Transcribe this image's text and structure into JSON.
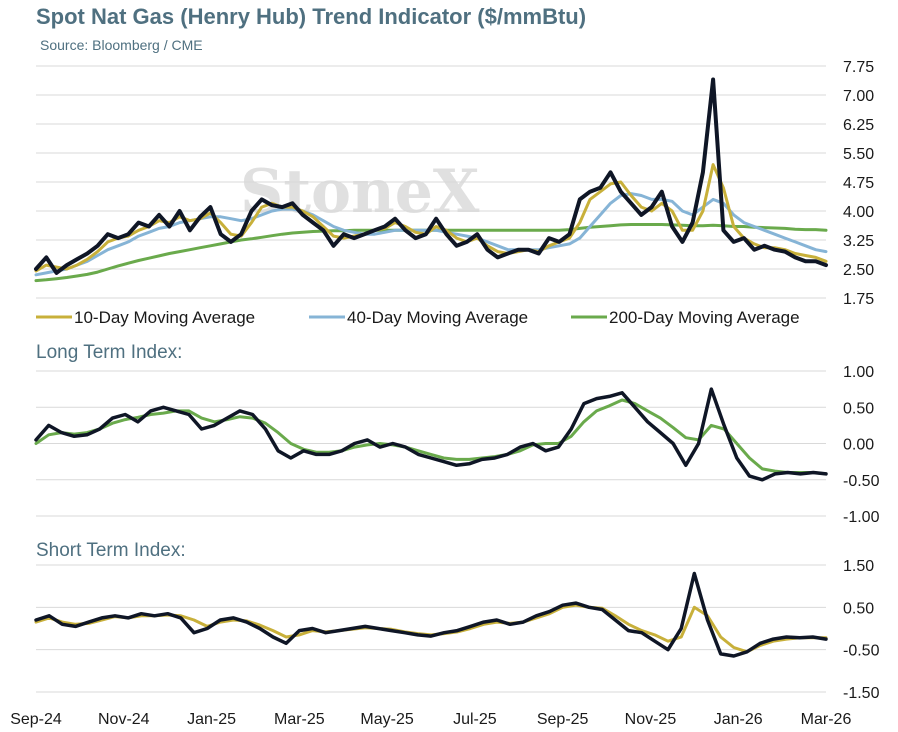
{
  "title": "Spot Nat Gas (Henry Hub) Trend Indicator ($/mmBtu)",
  "source": "Source: Bloomberg / CME",
  "watermark": "StoneX",
  "colors": {
    "price": "#0f1626",
    "ma10": "#c8b03a",
    "ma40": "#86b4d6",
    "ma200": "#6aaa4c",
    "label": "#4f7080"
  },
  "chart_data": [
    {
      "type": "line",
      "title": "Spot Nat Gas (Henry Hub) Trend Indicator ($/mmBtu)",
      "xlabel": "",
      "ylabel": "",
      "x_ticks": [
        "Sep-24",
        "Nov-24",
        "Jan-25",
        "Mar-25",
        "May-25",
        "Jul-25",
        "Sep-25",
        "Nov-25",
        "Jan-26",
        "Mar-26"
      ],
      "ylim": [
        1.75,
        7.75
      ],
      "y_ticks": [
        "7.75",
        "7.00",
        "6.25",
        "5.50",
        "4.75",
        "4.00",
        "3.25",
        "2.50",
        "1.75"
      ],
      "y_tick_values": [
        7.75,
        7.0,
        6.25,
        5.5,
        4.75,
        4.0,
        3.25,
        2.5,
        1.75
      ],
      "grid": "horizontal",
      "legend_position": "bottom",
      "legend": [
        "10-Day Moving Average",
        "40-Day Moving Average",
        "200-Day Moving Average"
      ],
      "series": [
        {
          "key": "price",
          "values": [
            2.5,
            2.8,
            2.4,
            2.6,
            2.75,
            2.9,
            3.1,
            3.4,
            3.3,
            3.4,
            3.7,
            3.6,
            3.9,
            3.6,
            4.0,
            3.5,
            3.85,
            4.1,
            3.4,
            3.2,
            3.4,
            4.0,
            4.3,
            4.15,
            4.1,
            4.2,
            3.9,
            3.7,
            3.5,
            3.1,
            3.4,
            3.3,
            3.4,
            3.5,
            3.6,
            3.8,
            3.5,
            3.3,
            3.4,
            3.8,
            3.4,
            3.1,
            3.2,
            3.4,
            3.0,
            2.8,
            2.9,
            3.0,
            3.0,
            2.9,
            3.3,
            3.2,
            3.4,
            4.3,
            4.5,
            4.6,
            5.0,
            4.5,
            4.2,
            3.9,
            4.1,
            4.5,
            3.6,
            3.2,
            3.7,
            5.0,
            7.4,
            3.5,
            3.2,
            3.3,
            3.0,
            3.1,
            3.0,
            2.95,
            2.8,
            2.7,
            2.7,
            2.6
          ]
        },
        {
          "key": "ma10",
          "name": "10-Day Moving Average",
          "values": [
            2.45,
            2.6,
            2.55,
            2.5,
            2.6,
            2.75,
            2.95,
            3.2,
            3.3,
            3.35,
            3.5,
            3.6,
            3.75,
            3.7,
            3.85,
            3.75,
            3.8,
            3.95,
            3.7,
            3.4,
            3.35,
            3.7,
            4.1,
            4.2,
            4.1,
            4.1,
            4.0,
            3.85,
            3.6,
            3.35,
            3.3,
            3.35,
            3.4,
            3.5,
            3.55,
            3.7,
            3.6,
            3.45,
            3.4,
            3.6,
            3.5,
            3.3,
            3.2,
            3.3,
            3.1,
            2.95,
            2.9,
            2.95,
            3.0,
            2.95,
            3.1,
            3.2,
            3.3,
            3.7,
            4.3,
            4.5,
            4.7,
            4.75,
            4.4,
            4.1,
            4.0,
            4.2,
            4.0,
            3.5,
            3.5,
            4.0,
            5.2,
            4.6,
            3.6,
            3.3,
            3.15,
            3.05,
            3.05,
            3.0,
            2.9,
            2.85,
            2.8,
            2.7
          ]
        },
        {
          "key": "ma40",
          "name": "40-Day Moving Average",
          "values": [
            2.35,
            2.4,
            2.45,
            2.5,
            2.6,
            2.7,
            2.85,
            3.0,
            3.1,
            3.2,
            3.35,
            3.45,
            3.55,
            3.6,
            3.7,
            3.75,
            3.8,
            3.85,
            3.85,
            3.8,
            3.75,
            3.8,
            3.9,
            4.0,
            4.05,
            4.05,
            4.0,
            3.9,
            3.75,
            3.6,
            3.5,
            3.45,
            3.4,
            3.4,
            3.45,
            3.5,
            3.5,
            3.5,
            3.5,
            3.5,
            3.45,
            3.4,
            3.35,
            3.3,
            3.2,
            3.1,
            3.0,
            3.0,
            3.0,
            3.0,
            3.05,
            3.1,
            3.15,
            3.3,
            3.6,
            3.9,
            4.2,
            4.4,
            4.45,
            4.4,
            4.3,
            4.3,
            4.25,
            4.0,
            3.9,
            4.1,
            4.3,
            4.2,
            3.9,
            3.7,
            3.6,
            3.5,
            3.4,
            3.3,
            3.2,
            3.1,
            3.0,
            2.95
          ]
        },
        {
          "key": "ma200",
          "name": "200-Day Moving Average",
          "values": [
            2.2,
            2.22,
            2.25,
            2.28,
            2.32,
            2.36,
            2.42,
            2.5,
            2.58,
            2.65,
            2.72,
            2.78,
            2.84,
            2.9,
            2.95,
            3.0,
            3.05,
            3.1,
            3.15,
            3.2,
            3.25,
            3.28,
            3.32,
            3.36,
            3.4,
            3.43,
            3.45,
            3.47,
            3.48,
            3.49,
            3.49,
            3.5,
            3.5,
            3.5,
            3.5,
            3.5,
            3.5,
            3.5,
            3.5,
            3.5,
            3.5,
            3.5,
            3.5,
            3.5,
            3.5,
            3.5,
            3.5,
            3.5,
            3.5,
            3.5,
            3.5,
            3.5,
            3.52,
            3.55,
            3.58,
            3.6,
            3.62,
            3.64,
            3.65,
            3.65,
            3.65,
            3.65,
            3.64,
            3.63,
            3.62,
            3.62,
            3.63,
            3.62,
            3.6,
            3.6,
            3.58,
            3.57,
            3.56,
            3.55,
            3.53,
            3.52,
            3.52,
            3.5
          ]
        }
      ]
    },
    {
      "type": "line",
      "title": "Long Term Index:",
      "ylim": [
        -1.0,
        1.0
      ],
      "y_ticks": [
        "1.00",
        "0.50",
        "0.00",
        "-0.50",
        "-1.00"
      ],
      "y_tick_values": [
        1.0,
        0.5,
        0.0,
        -0.5,
        -1.0
      ],
      "grid": "horizontal",
      "series": [
        {
          "key": "price",
          "values": [
            0.05,
            0.25,
            0.15,
            0.1,
            0.12,
            0.2,
            0.35,
            0.4,
            0.3,
            0.45,
            0.5,
            0.45,
            0.4,
            0.2,
            0.25,
            0.35,
            0.45,
            0.4,
            0.2,
            -0.1,
            -0.2,
            -0.1,
            -0.15,
            -0.15,
            -0.1,
            0.0,
            0.05,
            -0.05,
            0.0,
            -0.05,
            -0.15,
            -0.2,
            -0.25,
            -0.3,
            -0.28,
            -0.22,
            -0.2,
            -0.15,
            -0.05,
            0.0,
            -0.1,
            -0.05,
            0.2,
            0.55,
            0.62,
            0.65,
            0.7,
            0.5,
            0.3,
            0.15,
            0.0,
            -0.3,
            0.0,
            0.75,
            0.25,
            -0.2,
            -0.45,
            -0.5,
            -0.42,
            -0.4,
            -0.42,
            -0.4,
            -0.42
          ]
        },
        {
          "key": "ma200",
          "values": [
            0.0,
            0.12,
            0.15,
            0.13,
            0.15,
            0.2,
            0.28,
            0.33,
            0.36,
            0.4,
            0.42,
            0.45,
            0.45,
            0.35,
            0.3,
            0.33,
            0.37,
            0.35,
            0.28,
            0.15,
            0.0,
            -0.08,
            -0.12,
            -0.12,
            -0.1,
            -0.05,
            -0.02,
            0.0,
            -0.02,
            -0.05,
            -0.1,
            -0.15,
            -0.2,
            -0.22,
            -0.22,
            -0.2,
            -0.18,
            -0.15,
            -0.1,
            -0.02,
            0.0,
            0.0,
            0.1,
            0.3,
            0.45,
            0.52,
            0.6,
            0.55,
            0.45,
            0.35,
            0.22,
            0.08,
            0.05,
            0.25,
            0.2,
            0.0,
            -0.2,
            -0.35,
            -0.38,
            -0.4,
            -0.4,
            -0.4,
            -0.42
          ]
        }
      ]
    },
    {
      "type": "line",
      "title": "Short Term Index:",
      "ylim": [
        -1.5,
        1.5
      ],
      "y_ticks": [
        "1.50",
        "0.50",
        "-0.50",
        "-1.50"
      ],
      "y_tick_values": [
        1.5,
        0.5,
        -0.5,
        -1.5
      ],
      "grid": "horizontal",
      "series": [
        {
          "key": "price",
          "values": [
            0.2,
            0.3,
            0.1,
            0.05,
            0.15,
            0.25,
            0.3,
            0.25,
            0.35,
            0.3,
            0.35,
            0.25,
            -0.1,
            0.0,
            0.2,
            0.25,
            0.15,
            0.0,
            -0.2,
            -0.35,
            -0.05,
            0.0,
            -0.1,
            -0.05,
            0.0,
            0.05,
            0.0,
            -0.05,
            -0.1,
            -0.15,
            -0.18,
            -0.1,
            -0.05,
            0.05,
            0.15,
            0.2,
            0.1,
            0.15,
            0.3,
            0.4,
            0.55,
            0.6,
            0.5,
            0.45,
            0.2,
            -0.05,
            -0.1,
            -0.3,
            -0.5,
            0.0,
            1.3,
            0.2,
            -0.6,
            -0.65,
            -0.55,
            -0.35,
            -0.25,
            -0.2,
            -0.22,
            -0.2,
            -0.25
          ]
        },
        {
          "key": "ma10",
          "values": [
            0.15,
            0.25,
            0.15,
            0.1,
            0.12,
            0.2,
            0.28,
            0.25,
            0.3,
            0.3,
            0.32,
            0.3,
            0.2,
            0.05,
            0.15,
            0.2,
            0.18,
            0.08,
            -0.05,
            -0.2,
            -0.15,
            -0.05,
            -0.08,
            -0.05,
            -0.02,
            0.02,
            0.0,
            -0.02,
            -0.08,
            -0.12,
            -0.15,
            -0.12,
            -0.08,
            0.0,
            0.1,
            0.15,
            0.12,
            0.15,
            0.25,
            0.35,
            0.5,
            0.55,
            0.5,
            0.48,
            0.3,
            0.1,
            -0.05,
            -0.15,
            -0.3,
            -0.2,
            0.5,
            0.3,
            -0.2,
            -0.45,
            -0.55,
            -0.4,
            -0.3,
            -0.25,
            -0.22,
            -0.22,
            -0.22
          ]
        }
      ]
    }
  ]
}
